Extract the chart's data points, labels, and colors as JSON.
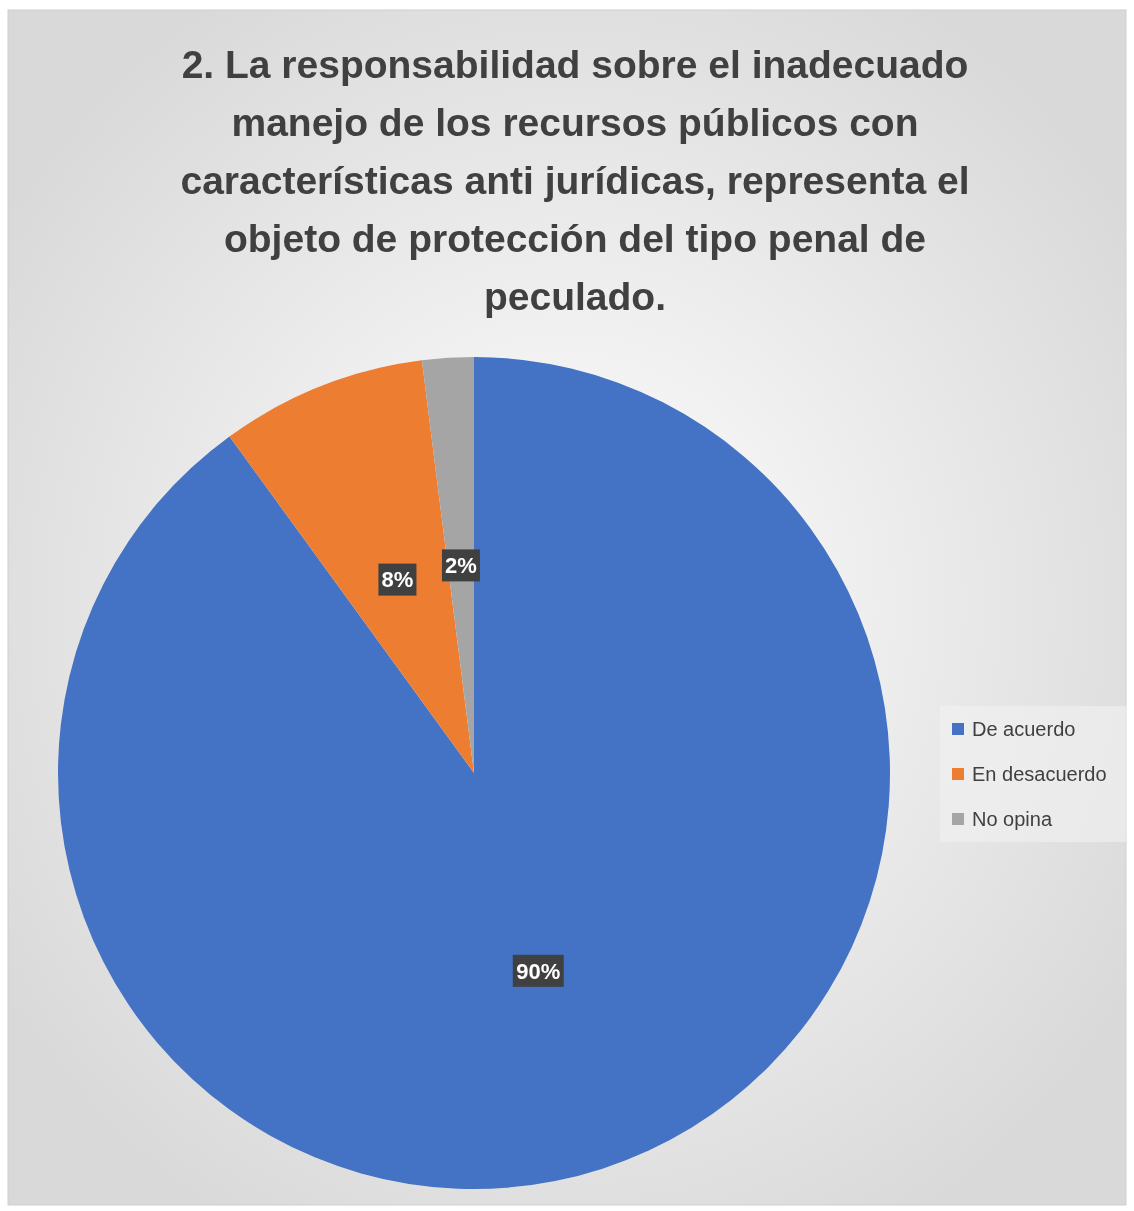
{
  "chart_data": {
    "type": "pie",
    "title": "2. La responsabilidad sobre el inadecuado manejo de los recursos públicos con características anti jurídicas, representa el objeto de protección del tipo penal de peculado.",
    "categories": [
      "De acuerdo",
      "En desacuerdo",
      "No opina"
    ],
    "values": [
      90,
      8,
      2
    ],
    "colors": [
      "#4472c4",
      "#ed7d31",
      "#a5a5a5"
    ],
    "value_labels": [
      "90%",
      "8%",
      "2%"
    ],
    "legend": "right"
  }
}
